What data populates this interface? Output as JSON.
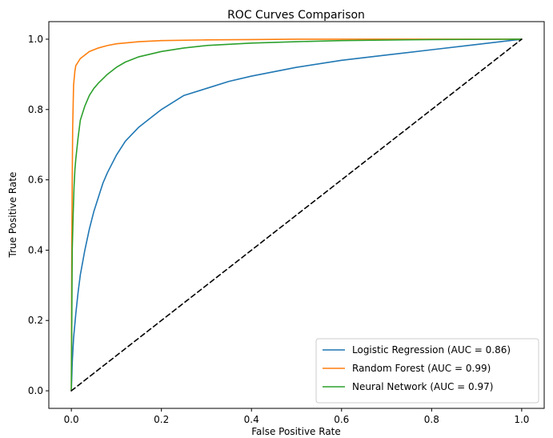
{
  "chart_data": {
    "type": "line",
    "title": "ROC Curves Comparison",
    "xlabel": "False Positive Rate",
    "ylabel": "True Positive Rate",
    "xlim": [
      -0.05,
      1.05
    ],
    "ylim": [
      -0.05,
      1.05
    ],
    "xticks": [
      "0.0",
      "0.2",
      "0.4",
      "0.6",
      "0.8",
      "1.0"
    ],
    "yticks": [
      "0.0",
      "0.2",
      "0.4",
      "0.6",
      "0.8",
      "1.0"
    ],
    "grid": false,
    "legend_position": "lower-right",
    "series": [
      {
        "name": "Logistic Regression (AUC = 0.86)",
        "color": "#1f77b4",
        "style": "solid",
        "x": [
          0.0,
          0.002,
          0.005,
          0.01,
          0.015,
          0.02,
          0.03,
          0.04,
          0.05,
          0.06,
          0.07,
          0.08,
          0.1,
          0.12,
          0.15,
          0.18,
          0.2,
          0.25,
          0.3,
          0.35,
          0.4,
          0.5,
          0.6,
          0.7,
          0.8,
          0.9,
          1.0
        ],
        "y": [
          0.0,
          0.08,
          0.15,
          0.22,
          0.28,
          0.33,
          0.4,
          0.46,
          0.51,
          0.55,
          0.59,
          0.62,
          0.67,
          0.71,
          0.75,
          0.78,
          0.8,
          0.84,
          0.86,
          0.88,
          0.895,
          0.92,
          0.94,
          0.955,
          0.97,
          0.985,
          1.0
        ]
      },
      {
        "name": "Random Forest (AUC = 0.99)",
        "color": "#ff7f0e",
        "style": "solid",
        "x": [
          0.0,
          0.001,
          0.002,
          0.003,
          0.005,
          0.008,
          0.01,
          0.015,
          0.02,
          0.03,
          0.04,
          0.06,
          0.08,
          0.1,
          0.15,
          0.2,
          0.3,
          0.4,
          0.5,
          0.7,
          1.0
        ],
        "y": [
          0.0,
          0.4,
          0.6,
          0.75,
          0.87,
          0.91,
          0.925,
          0.935,
          0.945,
          0.955,
          0.965,
          0.975,
          0.982,
          0.987,
          0.993,
          0.996,
          0.998,
          0.999,
          1.0,
          1.0,
          1.0
        ]
      },
      {
        "name": "Neural Network (AUC = 0.97)",
        "color": "#2ca02c",
        "style": "solid",
        "x": [
          0.0,
          0.002,
          0.004,
          0.006,
          0.008,
          0.01,
          0.015,
          0.02,
          0.03,
          0.04,
          0.05,
          0.06,
          0.08,
          0.1,
          0.12,
          0.15,
          0.2,
          0.25,
          0.3,
          0.4,
          0.5,
          0.6,
          0.8,
          1.0
        ],
        "y": [
          0.0,
          0.4,
          0.5,
          0.58,
          0.63,
          0.66,
          0.72,
          0.77,
          0.81,
          0.84,
          0.86,
          0.875,
          0.9,
          0.92,
          0.935,
          0.95,
          0.965,
          0.975,
          0.982,
          0.989,
          0.993,
          0.996,
          0.999,
          1.0
        ]
      },
      {
        "name": "",
        "color": "#000000",
        "style": "dashed",
        "x": [
          0.0,
          1.0
        ],
        "y": [
          0.0,
          1.0
        ]
      }
    ]
  }
}
